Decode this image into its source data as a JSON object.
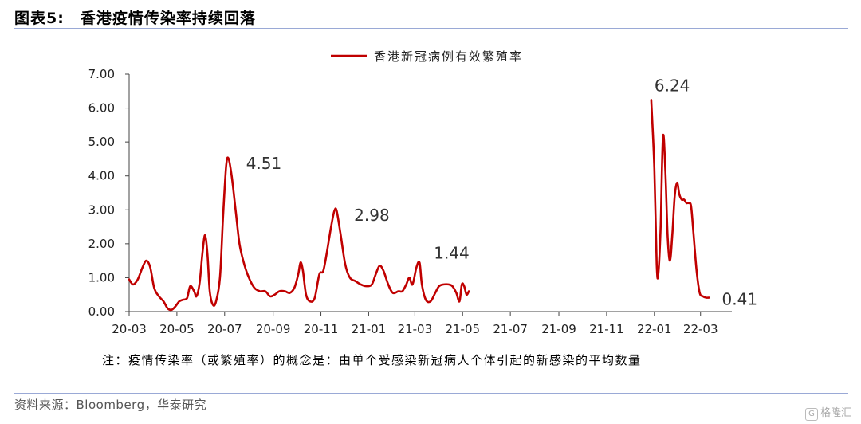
{
  "figure": {
    "title": "图表5:　香港疫情传染率持续回落",
    "note": "注：疫情传染率（或繁殖率）的概念是：由单个受感染新冠病人个体引起的新感染的平均数量",
    "source": "资料来源：Bloomberg，华泰研究",
    "watermark": "格隆汇",
    "watermark_icon": "G"
  },
  "colors": {
    "line": "#c00000",
    "rule": "#9aa9d6"
  },
  "chart_data": {
    "type": "line",
    "title": "",
    "xlabel": "",
    "ylabel": "",
    "ylim": [
      0,
      7
    ],
    "yticks": [
      "0.00",
      "1.00",
      "2.00",
      "3.00",
      "4.00",
      "5.00",
      "6.00",
      "7.00"
    ],
    "xticks": [
      "20-03",
      "20-05",
      "20-07",
      "20-09",
      "20-11",
      "21-01",
      "21-03",
      "21-05",
      "21-07",
      "21-09",
      "21-11",
      "22-01",
      "22-03"
    ],
    "legend": "香港新冠病例有效繁殖率",
    "legend_position": "top-center",
    "grid": false,
    "series": [
      {
        "name": "香港新冠病例有效繁殖率",
        "segments": [
          [
            [
              "2020-03-01",
              0.95
            ],
            [
              "2020-03-06",
              0.8
            ],
            [
              "2020-03-12",
              0.95
            ],
            [
              "2020-03-18",
              1.3
            ],
            [
              "2020-03-23",
              1.5
            ],
            [
              "2020-03-28",
              1.3
            ],
            [
              "2020-04-02",
              0.7
            ],
            [
              "2020-04-08",
              0.45
            ],
            [
              "2020-04-14",
              0.3
            ],
            [
              "2020-04-19",
              0.1
            ],
            [
              "2020-04-24",
              0.05
            ],
            [
              "2020-04-29",
              0.15
            ],
            [
              "2020-05-04",
              0.3
            ],
            [
              "2020-05-09",
              0.35
            ],
            [
              "2020-05-14",
              0.4
            ],
            [
              "2020-05-18",
              0.75
            ],
            [
              "2020-05-23",
              0.6
            ],
            [
              "2020-05-26",
              0.45
            ],
            [
              "2020-05-30",
              0.85
            ],
            [
              "2020-06-03",
              1.8
            ],
            [
              "2020-06-06",
              2.25
            ],
            [
              "2020-06-09",
              1.7
            ],
            [
              "2020-06-12",
              0.6
            ],
            [
              "2020-06-16",
              0.2
            ],
            [
              "2020-06-20",
              0.3
            ],
            [
              "2020-06-25",
              1.0
            ],
            [
              "2020-06-29",
              2.8
            ],
            [
              "2020-07-03",
              4.3
            ],
            [
              "2020-07-06",
              4.51
            ],
            [
              "2020-07-10",
              4.0
            ],
            [
              "2020-07-15",
              3.0
            ],
            [
              "2020-07-20",
              2.0
            ],
            [
              "2020-07-26",
              1.4
            ],
            [
              "2020-08-01",
              1.0
            ],
            [
              "2020-08-08",
              0.7
            ],
            [
              "2020-08-15",
              0.6
            ],
            [
              "2020-08-22",
              0.6
            ],
            [
              "2020-08-28",
              0.45
            ],
            [
              "2020-09-03",
              0.5
            ],
            [
              "2020-09-09",
              0.6
            ],
            [
              "2020-09-16",
              0.6
            ],
            [
              "2020-09-22",
              0.55
            ],
            [
              "2020-09-28",
              0.7
            ],
            [
              "2020-10-03",
              1.1
            ],
            [
              "2020-10-06",
              1.45
            ],
            [
              "2020-10-09",
              1.2
            ],
            [
              "2020-10-13",
              0.5
            ],
            [
              "2020-10-18",
              0.3
            ],
            [
              "2020-10-24",
              0.4
            ],
            [
              "2020-10-30",
              1.1
            ],
            [
              "2020-11-04",
              1.2
            ],
            [
              "2020-11-09",
              1.8
            ],
            [
              "2020-11-14",
              2.5
            ],
            [
              "2020-11-18",
              2.95
            ],
            [
              "2020-11-21",
              2.98
            ],
            [
              "2020-11-26",
              2.3
            ],
            [
              "2020-12-02",
              1.4
            ],
            [
              "2020-12-08",
              1.0
            ],
            [
              "2020-12-15",
              0.9
            ],
            [
              "2020-12-22",
              0.8
            ],
            [
              "2020-12-29",
              0.75
            ],
            [
              "2021-01-05",
              0.8
            ],
            [
              "2021-01-10",
              1.1
            ],
            [
              "2021-01-15",
              1.35
            ],
            [
              "2021-01-20",
              1.2
            ],
            [
              "2021-01-26",
              0.8
            ],
            [
              "2021-02-01",
              0.55
            ],
            [
              "2021-02-08",
              0.6
            ],
            [
              "2021-02-13",
              0.6
            ],
            [
              "2021-02-18",
              0.8
            ],
            [
              "2021-02-22",
              1.0
            ],
            [
              "2021-02-26",
              0.8
            ],
            [
              "2021-03-03",
              1.3
            ],
            [
              "2021-03-07",
              1.44
            ],
            [
              "2021-03-10",
              0.8
            ],
            [
              "2021-03-15",
              0.35
            ],
            [
              "2021-03-21",
              0.3
            ],
            [
              "2021-03-27",
              0.55
            ],
            [
              "2021-04-01",
              0.75
            ],
            [
              "2021-04-07",
              0.8
            ],
            [
              "2021-04-13",
              0.8
            ],
            [
              "2021-04-18",
              0.75
            ],
            [
              "2021-04-23",
              0.55
            ],
            [
              "2021-04-27",
              0.3
            ],
            [
              "2021-04-30",
              0.8
            ],
            [
              "2021-05-03",
              0.75
            ],
            [
              "2021-05-06",
              0.5
            ],
            [
              "2021-05-09",
              0.6
            ]
          ],
          [
            [
              "2021-12-28",
              6.24
            ],
            [
              "2022-01-01",
              4.2
            ],
            [
              "2022-01-04",
              1.4
            ],
            [
              "2022-01-06",
              1.1
            ],
            [
              "2022-01-09",
              2.5
            ],
            [
              "2022-01-12",
              5.15
            ],
            [
              "2022-01-15",
              4.2
            ],
            [
              "2022-01-18",
              2.2
            ],
            [
              "2022-01-21",
              1.5
            ],
            [
              "2022-01-24",
              2.3
            ],
            [
              "2022-01-27",
              3.4
            ],
            [
              "2022-01-30",
              3.8
            ],
            [
              "2022-02-02",
              3.45
            ],
            [
              "2022-02-05",
              3.3
            ],
            [
              "2022-02-08",
              3.3
            ],
            [
              "2022-02-11",
              3.2
            ],
            [
              "2022-02-14",
              3.2
            ],
            [
              "2022-02-17",
              3.1
            ],
            [
              "2022-02-20",
              2.3
            ],
            [
              "2022-02-24",
              1.2
            ],
            [
              "2022-02-28",
              0.55
            ],
            [
              "2022-03-04",
              0.45
            ],
            [
              "2022-03-08",
              0.41
            ],
            [
              "2022-03-12",
              0.41
            ]
          ]
        ]
      }
    ],
    "annotations": [
      {
        "x": "2020-07-06",
        "y": 4.51,
        "text": "4.51"
      },
      {
        "x": "2020-11-21",
        "y": 2.98,
        "text": "2.98"
      },
      {
        "x": "2021-03-07",
        "y": 1.44,
        "text": "1.44"
      },
      {
        "x": "2021-12-28",
        "y": 6.24,
        "text": "6.24"
      },
      {
        "x": "2022-03-12",
        "y": 0.41,
        "text": "0.41"
      }
    ]
  }
}
